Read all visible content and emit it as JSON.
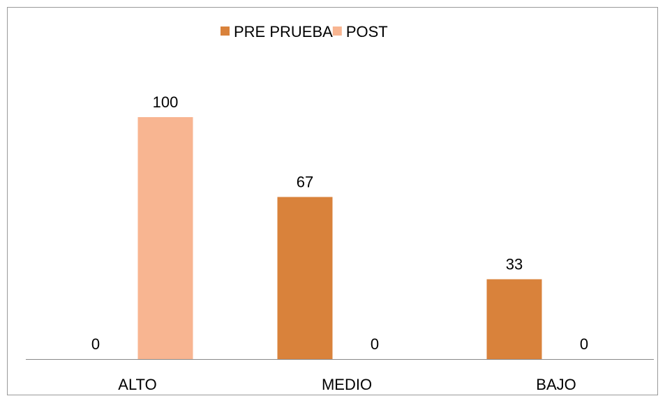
{
  "chart_data": {
    "type": "bar",
    "categories": [
      "ALTO",
      "MEDIO",
      "BAJO"
    ],
    "series": [
      {
        "name": "PRE PRUEBA",
        "color": "#d9823b",
        "values": [
          0,
          67,
          33
        ]
      },
      {
        "name": "POST",
        "color": "#f8b591",
        "values": [
          100,
          0,
          0
        ]
      }
    ]
  }
}
